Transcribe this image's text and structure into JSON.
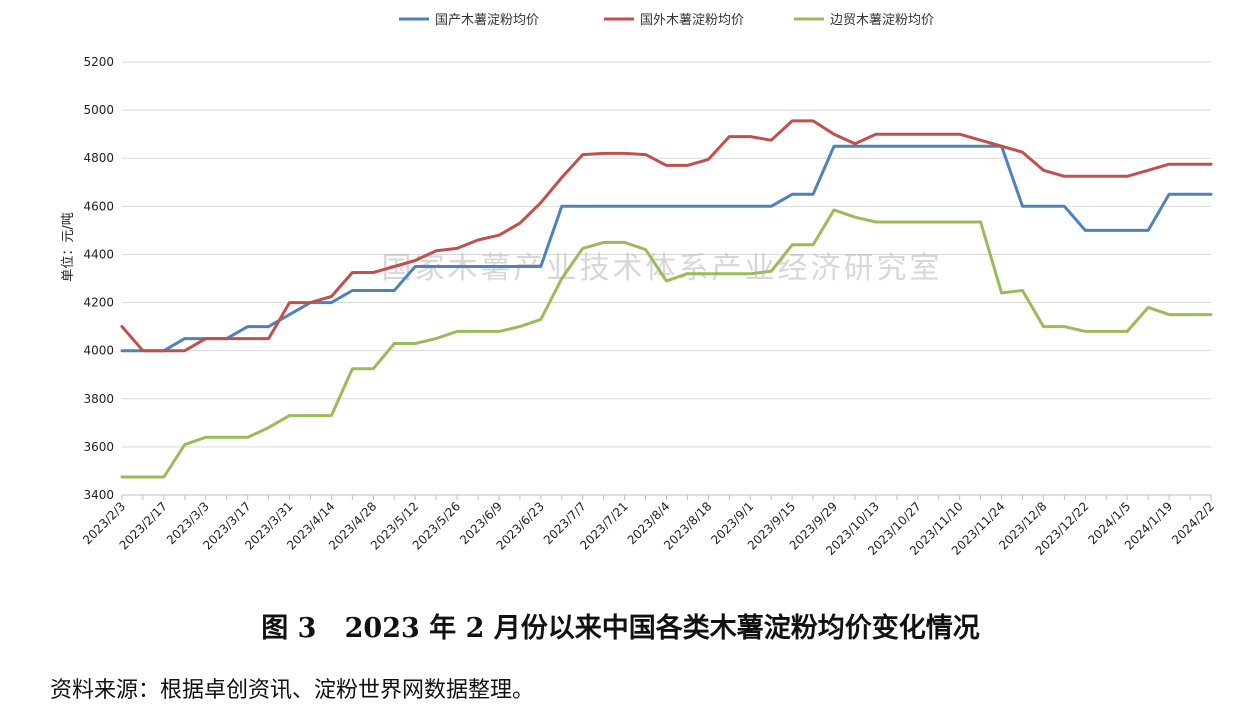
{
  "chart_data": {
    "type": "line",
    "ylabel": "单位：元/吨",
    "ylim": [
      3400,
      5200
    ],
    "yticks": [
      3400,
      3600,
      3800,
      4000,
      4200,
      4400,
      4600,
      4800,
      5000,
      5200
    ],
    "grid": "horizontal",
    "legend_position": "top-center",
    "x_tick_labels": [
      "2023/2/3",
      "2023/2/17",
      "2023/3/3",
      "2023/3/17",
      "2023/3/31",
      "2023/4/14",
      "2023/4/28",
      "2023/5/12",
      "2023/5/26",
      "2023/6/9",
      "2023/6/23",
      "2023/7/7",
      "2023/7/21",
      "2023/8/4",
      "2023/8/18",
      "2023/9/1",
      "2023/9/15",
      "2023/9/29",
      "2023/10/13",
      "2023/10/27",
      "2023/11/10",
      "2023/11/24",
      "2023/12/8",
      "2023/12/22",
      "2024/1/5",
      "2024/1/19",
      "2024/2/2"
    ],
    "x": [
      "2023/2/3",
      "2023/2/10",
      "2023/2/17",
      "2023/2/24",
      "2023/3/3",
      "2023/3/10",
      "2023/3/17",
      "2023/3/24",
      "2023/3/31",
      "2023/4/7",
      "2023/4/14",
      "2023/4/21",
      "2023/4/28",
      "2023/5/5",
      "2023/5/12",
      "2023/5/19",
      "2023/5/26",
      "2023/6/2",
      "2023/6/9",
      "2023/6/16",
      "2023/6/23",
      "2023/6/30",
      "2023/7/7",
      "2023/7/14",
      "2023/7/21",
      "2023/7/28",
      "2023/8/4",
      "2023/8/11",
      "2023/8/18",
      "2023/8/25",
      "2023/9/1",
      "2023/9/8",
      "2023/9/15",
      "2023/9/22",
      "2023/9/29",
      "2023/10/6",
      "2023/10/13",
      "2023/10/20",
      "2023/10/27",
      "2023/11/3",
      "2023/11/10",
      "2023/11/17",
      "2023/11/24",
      "2023/12/1",
      "2023/12/8",
      "2023/12/15",
      "2023/12/22",
      "2023/12/29",
      "2024/1/5",
      "2024/1/12",
      "2024/1/19",
      "2024/1/26",
      "2024/2/2"
    ],
    "series": [
      {
        "name": "国产木薯淀粉均价",
        "color": "#4f81bd",
        "values": [
          4000,
          4000,
          4000,
          4050,
          4050,
          4050,
          4100,
          4100,
          4150,
          4200,
          4200,
          4250,
          4250,
          4250,
          4350,
          4350,
          4350,
          4350,
          4350,
          4350,
          4350,
          4600,
          4600,
          4600,
          4600,
          4600,
          4600,
          4600,
          4600,
          4600,
          4600,
          4600,
          4650,
          4650,
          4850,
          4850,
          4850,
          4850,
          4850,
          4850,
          4850,
          4850,
          4850,
          4600,
          4600,
          4600,
          4500,
          4500,
          4500,
          4500,
          4650,
          4650,
          4650
        ]
      },
      {
        "name": "国外木薯淀粉均价",
        "color": "#c0504d",
        "values": [
          4100,
          4000,
          4000,
          4000,
          4050,
          4050,
          4050,
          4050,
          4200,
          4200,
          4225,
          4325,
          4325,
          4350,
          4375,
          4415,
          4425,
          4460,
          4480,
          4530,
          4615,
          4720,
          4815,
          4820,
          4820,
          4815,
          4770,
          4770,
          4795,
          4890,
          4890,
          4875,
          4955,
          4955,
          4900,
          4860,
          4900,
          4900,
          4900,
          4900,
          4900,
          4875,
          4850,
          4825,
          4750,
          4725,
          4725,
          4725,
          4725,
          4750,
          4775,
          4775,
          4775
        ]
      },
      {
        "name": "边贸木薯淀粉均价",
        "color": "#9bbb59",
        "values": [
          3475,
          3475,
          3475,
          3610,
          3640,
          3640,
          3640,
          3680,
          3730,
          3730,
          3730,
          3925,
          3925,
          4030,
          4030,
          4050,
          4080,
          4080,
          4080,
          4100,
          4130,
          4300,
          4425,
          4450,
          4450,
          4420,
          4290,
          4320,
          4320,
          4320,
          4320,
          4330,
          4440,
          4440,
          4585,
          4555,
          4535,
          4535,
          4535,
          4535,
          4535,
          4535,
          4240,
          4250,
          4100,
          4100,
          4080,
          4080,
          4080,
          4180,
          4150,
          4150,
          4150
        ]
      }
    ]
  },
  "watermark": "国家木薯产业技术体系产业经济研究室",
  "caption": "图 3   2023 年 2 月份以来中国各类木薯淀粉均价变化情况",
  "source": "资料来源：根据卓创资讯、淀粉世界网数据整理。"
}
